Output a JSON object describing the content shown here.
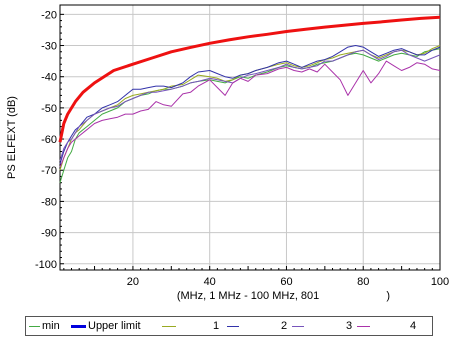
{
  "chart_data": {
    "type": "line",
    "ylabel": "PS ELFEXT (dB)",
    "xlabel": "(MHz, 1 MHz - 100 MHz, 801",
    "xlabel_tail": ")",
    "xlim": [
      1,
      100
    ],
    "ylim": [
      -102,
      -17
    ],
    "xticks": [
      20,
      40,
      60,
      80,
      100
    ],
    "yticks": [
      -20,
      -30,
      -40,
      -50,
      -60,
      -70,
      -80,
      -90,
      -100
    ],
    "grid": true,
    "legend_position": "bottom",
    "series": [
      {
        "name": "Upper limit",
        "color": "#ee1111",
        "legend_color": "#0000dd",
        "legend_label": "Upper limit",
        "width": 3,
        "x": [
          1,
          2,
          3,
          5,
          7,
          10,
          15,
          20,
          25,
          30,
          35,
          40,
          45,
          50,
          55,
          60,
          65,
          70,
          75,
          80,
          85,
          90,
          95,
          100
        ],
        "y": [
          -61,
          -55,
          -52,
          -48,
          -45,
          -42,
          -38,
          -36,
          -34,
          -32,
          -30.6,
          -29.3,
          -28.2,
          -27.2,
          -26.4,
          -25.5,
          -24.8,
          -24.1,
          -23.5,
          -22.9,
          -22.4,
          -21.8,
          -21.3,
          -20.9
        ]
      },
      {
        "name": "min",
        "color": "#44aa44",
        "legend_label": "min",
        "width": 1,
        "x": [
          1,
          2,
          3,
          4,
          5,
          6,
          8,
          10,
          12,
          14,
          16,
          18,
          20,
          22,
          24,
          26,
          28,
          30,
          33,
          35,
          37,
          40,
          42,
          44,
          46,
          48,
          50,
          52,
          55,
          58,
          60,
          62,
          64,
          66,
          68,
          70,
          72,
          74,
          76,
          78,
          80,
          82,
          84,
          86,
          88,
          90,
          92,
          94,
          96,
          98,
          100
        ],
        "y": [
          -74,
          -70,
          -66,
          -64,
          -60,
          -58,
          -56,
          -54,
          -52,
          -51,
          -50,
          -48,
          -47,
          -46,
          -45.5,
          -44.5,
          -44,
          -44,
          -43,
          -42,
          -41.5,
          -41,
          -41.5,
          -42,
          -41,
          -40,
          -40.5,
          -39.5,
          -38.5,
          -37,
          -36.5,
          -37,
          -37.5,
          -37,
          -36,
          -35.5,
          -35,
          -34,
          -33,
          -32.5,
          -33,
          -34,
          -35,
          -34,
          -33,
          -32.5,
          -33,
          -33.5,
          -32,
          -31.5,
          -31
        ]
      },
      {
        "name": "1",
        "color": "#99aa22",
        "legend_label": "1",
        "width": 1,
        "x": [
          1,
          2,
          3,
          4,
          5,
          6,
          8,
          10,
          12,
          14,
          16,
          18,
          20,
          22,
          24,
          26,
          28,
          30,
          33,
          35,
          37,
          40,
          42,
          44,
          46,
          48,
          50,
          52,
          55,
          58,
          60,
          62,
          64,
          66,
          68,
          70,
          72,
          74,
          76,
          78,
          80,
          82,
          84,
          86,
          88,
          90,
          92,
          94,
          96,
          98,
          100
        ],
        "y": [
          -70,
          -66,
          -63,
          -60,
          -58,
          -57,
          -54,
          -52,
          -51,
          -50,
          -49,
          -47,
          -46,
          -45.5,
          -45,
          -44.5,
          -44,
          -43,
          -42.5,
          -41,
          -39.5,
          -40,
          -40.5,
          -41.5,
          -41,
          -39.5,
          -39,
          -38,
          -37,
          -36,
          -35.5,
          -36.5,
          -37,
          -36.5,
          -35.5,
          -34.5,
          -34,
          -33,
          -32.5,
          -32,
          -31.5,
          -33,
          -34,
          -33,
          -32,
          -31.5,
          -32,
          -33,
          -32.5,
          -31,
          -30
        ]
      },
      {
        "name": "2",
        "color": "#3333aa",
        "legend_label": "2",
        "width": 1,
        "x": [
          1,
          2,
          3,
          4,
          5,
          6,
          8,
          10,
          12,
          14,
          16,
          18,
          20,
          22,
          24,
          26,
          28,
          30,
          33,
          35,
          37,
          40,
          42,
          44,
          46,
          48,
          50,
          52,
          55,
          58,
          60,
          62,
          64,
          66,
          68,
          70,
          72,
          74,
          76,
          78,
          80,
          82,
          84,
          86,
          88,
          90,
          92,
          94,
          96,
          98,
          100
        ],
        "y": [
          -68,
          -64,
          -61,
          -59,
          -57,
          -56,
          -53,
          -52,
          -50,
          -49,
          -48,
          -46,
          -44,
          -44,
          -43.5,
          -43,
          -43,
          -43.5,
          -42,
          -40,
          -38.5,
          -38,
          -39,
          -40,
          -40.5,
          -39.5,
          -39,
          -38,
          -37,
          -35.5,
          -35,
          -36,
          -37,
          -36,
          -35,
          -34.5,
          -33.5,
          -32,
          -30.5,
          -30,
          -30.5,
          -32,
          -33.5,
          -32.5,
          -31.5,
          -31,
          -32,
          -33,
          -33,
          -31.5,
          -30.5
        ]
      },
      {
        "name": "3",
        "color": "#7755bb",
        "legend_label": "3",
        "width": 1,
        "x": [
          1,
          2,
          3,
          4,
          5,
          6,
          8,
          10,
          12,
          14,
          16,
          18,
          20,
          22,
          24,
          26,
          28,
          30,
          33,
          35,
          37,
          40,
          42,
          44,
          46,
          48,
          50,
          52,
          55,
          58,
          60,
          62,
          64,
          66,
          68,
          70,
          72,
          74,
          76,
          78,
          80,
          82,
          84,
          86,
          88,
          90,
          92,
          94,
          96,
          98,
          100
        ],
        "y": [
          -67,
          -63,
          -61,
          -60,
          -58,
          -56,
          -54,
          -52,
          -51,
          -50,
          -49.5,
          -48,
          -47,
          -46,
          -45,
          -45,
          -44.5,
          -44,
          -43,
          -42,
          -41.5,
          -40.5,
          -41,
          -41.5,
          -42,
          -40.5,
          -39.5,
          -39,
          -38,
          -37,
          -36,
          -37,
          -37.5,
          -37,
          -36.5,
          -35,
          -35,
          -34,
          -33,
          -32,
          -31.5,
          -33,
          -34.5,
          -33.5,
          -32,
          -31.5,
          -33,
          -34,
          -35,
          -34,
          -33
        ]
      },
      {
        "name": "4",
        "color": "#aa33aa",
        "legend_label": "4",
        "width": 1,
        "x": [
          1,
          2,
          3,
          4,
          5,
          6,
          8,
          10,
          12,
          14,
          16,
          18,
          20,
          22,
          24,
          26,
          28,
          30,
          33,
          35,
          37,
          40,
          42,
          44,
          46,
          48,
          50,
          52,
          55,
          58,
          60,
          62,
          64,
          66,
          68,
          70,
          72,
          74,
          76,
          78,
          80,
          82,
          84,
          86,
          88,
          90,
          92,
          94,
          96,
          98,
          100
        ],
        "y": [
          -69,
          -66,
          -63,
          -61,
          -60,
          -59,
          -57,
          -55,
          -54,
          -53.5,
          -53,
          -52,
          -52,
          -51,
          -50.5,
          -48,
          -49,
          -49.5,
          -45.5,
          -45,
          -43,
          -41,
          -43.5,
          -46,
          -42,
          -40.5,
          -41.5,
          -39.5,
          -39,
          -37.5,
          -37,
          -38,
          -38.5,
          -37.5,
          -38.5,
          -36,
          -38.5,
          -41,
          -46,
          -42,
          -38,
          -42,
          -39,
          -35,
          -36.5,
          -38,
          -37,
          -35.5,
          -36,
          -37.5,
          -38
        ]
      }
    ]
  }
}
